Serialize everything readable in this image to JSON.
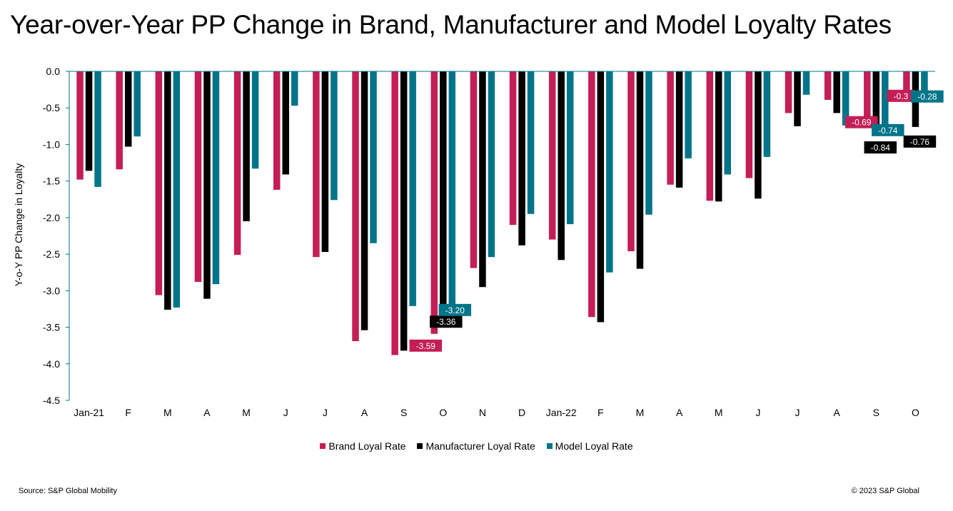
{
  "title": "Year-over-Year PP Change in Brand, Manufacturer and Model Loyalty Rates",
  "source": "Source: S&P Global Mobility",
  "copyright": "© 2023 S&P Global",
  "chart_data": {
    "type": "bar",
    "title": "Year-over-Year PP Change in Brand, Manufacturer and Model Loyalty Rates",
    "xlabel": "",
    "ylabel": "Y-o-Y PP Change in Loyalty",
    "ylim": [
      -4.5,
      0.0
    ],
    "yticks": [
      "0.0",
      "-0.5",
      "-1.0",
      "-1.5",
      "-2.0",
      "-2.5",
      "-3.0",
      "-3.5",
      "-4.0",
      "-4.5"
    ],
    "categories": [
      "Jan-21",
      "F",
      "M",
      "A",
      "M",
      "J",
      "J",
      "A",
      "S",
      "O",
      "N",
      "D",
      "Jan-22",
      "F",
      "M",
      "A",
      "M",
      "J",
      "J",
      "A",
      "S",
      "O"
    ],
    "legend_position": "bottom",
    "grid": false,
    "series": [
      {
        "name": "Brand Loyal Rate",
        "color": "#C41E56",
        "values": [
          -1.48,
          -1.34,
          -3.06,
          -2.88,
          -2.51,
          -1.62,
          -2.54,
          -3.69,
          -3.88,
          -3.59,
          -2.69,
          -2.1,
          -2.3,
          -3.36,
          -2.46,
          -1.55,
          -1.77,
          -1.46,
          -0.57,
          -0.39,
          -0.69,
          -0.33
        ]
      },
      {
        "name": "Manufacturer Loyal Rate",
        "color": "#000000",
        "values": [
          -1.36,
          -1.03,
          -3.26,
          -3.11,
          -2.05,
          -1.41,
          -2.47,
          -3.54,
          -3.82,
          -3.36,
          -2.95,
          -2.38,
          -2.58,
          -3.43,
          -2.7,
          -1.59,
          -1.78,
          -1.74,
          -0.75,
          -0.57,
          -0.84,
          -0.76
        ]
      },
      {
        "name": "Model Loyal Rate",
        "color": "#007489",
        "values": [
          -1.58,
          -0.89,
          -3.23,
          -2.91,
          -1.33,
          -0.47,
          -1.76,
          -2.35,
          -3.21,
          -3.2,
          -2.54,
          -1.95,
          -2.09,
          -2.75,
          -1.96,
          -1.19,
          -1.41,
          -1.17,
          -0.32,
          -0.74,
          -0.74,
          -0.28
        ]
      }
    ],
    "data_labels": [
      {
        "series": 0,
        "index": 9,
        "text": "-3.59"
      },
      {
        "series": 1,
        "index": 9,
        "text": "-3.36"
      },
      {
        "series": 2,
        "index": 9,
        "text": "-3.20"
      },
      {
        "series": 0,
        "index": 20,
        "text": "-0.69"
      },
      {
        "series": 1,
        "index": 20,
        "text": "-0.84"
      },
      {
        "series": 2,
        "index": 20,
        "text": "-0.74"
      },
      {
        "series": 0,
        "index": 21,
        "text": "-0.3"
      },
      {
        "series": 1,
        "index": 21,
        "text": "-0.76"
      },
      {
        "series": 2,
        "index": 21,
        "text": "-0.28"
      }
    ]
  }
}
